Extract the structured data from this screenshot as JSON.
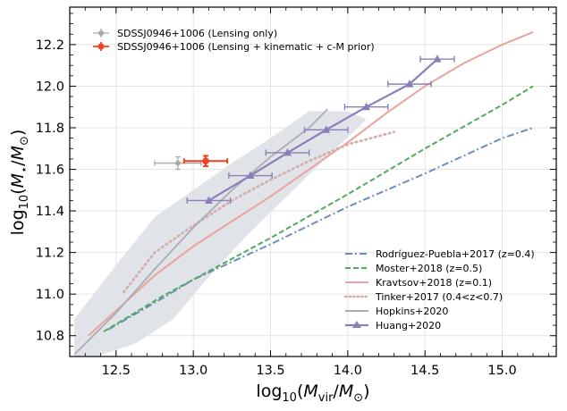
{
  "chart_data": {
    "type": "line",
    "xlabel": "log10(Mvir/M⊙)",
    "ylabel": "log10(M⋆/M⊙)",
    "xlim": [
      12.2,
      15.35
    ],
    "ylim": [
      10.7,
      12.38
    ],
    "grid": true,
    "xticks": [
      12.5,
      13.0,
      13.5,
      14.0,
      14.5,
      15.0
    ],
    "xtick_labels": [
      "12.5",
      "13.0",
      "13.5",
      "14.0",
      "14.5",
      "15.0"
    ],
    "yticks": [
      10.8,
      11.0,
      11.2,
      11.4,
      11.6,
      11.8,
      12.0,
      12.2
    ],
    "ytick_labels": [
      "10.8",
      "11.0",
      "11.2",
      "11.4",
      "11.6",
      "11.8",
      "12.0",
      "12.2"
    ],
    "top_legend": [
      {
        "label": "SDSSJ0946+1006 (Lensing only)",
        "color": "#aaaaaa"
      },
      {
        "label": "SDSSJ0946+1006 (Lensing + kinematic + c-M prior)",
        "color": "#ee4422"
      }
    ],
    "bottom_legend": [
      {
        "label": "Rodríguez-Puebla+2017 (z=0.4)",
        "color": "#6a8fbd",
        "style": "dashdot"
      },
      {
        "label": "Moster+2018 (z=0.5)",
        "color": "#56a85c",
        "style": "dashed"
      },
      {
        "label": "Kravtsov+2018 (z=0.1)",
        "color": "#e8a49c",
        "style": "solid"
      },
      {
        "label": "Tinker+2017 (0.4<z<0.7)",
        "color": "#d4b0ac",
        "style": "dotted"
      },
      {
        "label": "Hopkins+2020",
        "color": "#a9adb4",
        "style": "solid"
      },
      {
        "label": "Huang+2020",
        "color": "#8a7fb8",
        "style": "solid-triangle"
      }
    ],
    "series": [
      {
        "name": "Rodríguez-Puebla+2017 (z=0.4)",
        "x": [
          12.45,
          12.8,
          13.0,
          13.5,
          14.0,
          14.5,
          15.0,
          15.2
        ],
        "y": [
          10.83,
          10.98,
          11.07,
          11.24,
          11.42,
          11.58,
          11.75,
          11.8
        ]
      },
      {
        "name": "Moster+2018 (z=0.5)",
        "x": [
          12.42,
          12.6,
          12.8,
          13.0,
          13.5,
          14.0,
          14.5,
          15.0,
          15.2
        ],
        "y": [
          10.82,
          10.9,
          10.99,
          11.07,
          11.27,
          11.48,
          11.7,
          11.91,
          12.0
        ]
      },
      {
        "name": "Kravtsov+2018 (z=0.1)",
        "x": [
          12.32,
          12.5,
          12.75,
          13.0,
          13.25,
          13.5,
          13.75,
          14.0,
          14.25,
          14.5,
          14.75,
          15.0,
          15.2
        ],
        "y": [
          10.8,
          10.92,
          11.09,
          11.23,
          11.35,
          11.47,
          11.6,
          11.73,
          11.87,
          12.0,
          12.11,
          12.2,
          12.26
        ]
      },
      {
        "name": "Tinker+2017 (0.4<z<0.7)",
        "x": [
          12.55,
          12.75,
          13.0,
          13.25,
          13.5,
          13.75,
          14.0,
          14.2,
          14.3
        ],
        "y": [
          11.01,
          11.2,
          11.33,
          11.45,
          11.55,
          11.64,
          11.72,
          11.76,
          11.78
        ]
      },
      {
        "name": "Hopkins+2020",
        "x": [
          12.23,
          12.5,
          12.75,
          13.0,
          13.25,
          13.5,
          13.75,
          13.87
        ],
        "y": [
          10.71,
          10.91,
          11.12,
          11.32,
          11.5,
          11.66,
          11.8,
          11.89
        ]
      },
      {
        "name": "Huang+2020",
        "x": [
          13.1,
          13.37,
          13.61,
          13.86,
          14.12,
          14.4,
          14.58
        ],
        "y": [
          11.45,
          11.57,
          11.68,
          11.79,
          11.9,
          12.01,
          12.13
        ],
        "xerr": [
          0.14,
          0.14,
          0.14,
          0.14,
          0.14,
          0.14,
          0.11
        ]
      }
    ],
    "hopkins_band": {
      "x": [
        12.23,
        12.5,
        12.75,
        13.0,
        13.25,
        13.5,
        13.75,
        14.0,
        14.12,
        13.88,
        13.62,
        13.37,
        13.12,
        12.87,
        12.62,
        12.37,
        12.23
      ],
      "y": [
        10.88,
        11.14,
        11.37,
        11.5,
        11.63,
        11.75,
        11.88,
        11.88,
        11.84,
        11.67,
        11.48,
        11.3,
        11.1,
        10.88,
        10.76,
        10.7,
        10.7
      ]
    },
    "points": [
      {
        "name": "SDSSJ0946+1006 (Lensing only)",
        "x": 12.9,
        "y": 11.63,
        "xerr": 0.15,
        "yerr": 0.03
      },
      {
        "name": "SDSSJ0946+1006 (Lensing + kinematic + c-M prior)",
        "x": 13.08,
        "y": 11.64,
        "xerr": 0.14,
        "yerr": 0.025
      }
    ]
  }
}
